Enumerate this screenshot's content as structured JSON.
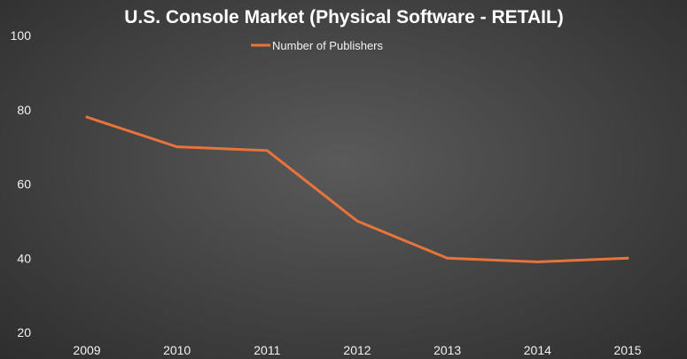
{
  "chart_data": {
    "type": "line",
    "title": "U.S. Console Market (Physical Software - RETAIL)",
    "categories": [
      "2009",
      "2010",
      "2011",
      "2012",
      "2013",
      "2014",
      "2015"
    ],
    "series": [
      {
        "name": "Number of Publishers",
        "color": "#e8743b",
        "values": [
          78,
          70,
          69,
          50,
          40,
          39,
          40
        ]
      }
    ],
    "ylim": [
      20,
      100
    ],
    "yticks": [
      "20",
      "40",
      "60",
      "80",
      "100"
    ],
    "xlabel": "",
    "ylabel": "",
    "grid": false,
    "legend": "top-center"
  }
}
